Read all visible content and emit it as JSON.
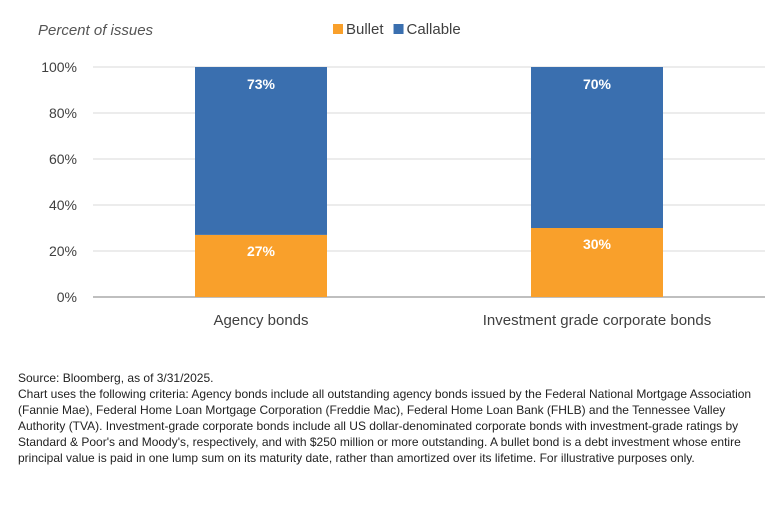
{
  "chart_data": {
    "type": "bar",
    "stacked": true,
    "ylabel": "Percent of issues",
    "ylim": [
      0,
      100
    ],
    "yticks": [
      "0%",
      "20%",
      "40%",
      "60%",
      "80%",
      "100%"
    ],
    "categories": [
      "Agency bonds",
      "Investment grade corporate bonds"
    ],
    "series": [
      {
        "name": "Bullet",
        "values": [
          27,
          30
        ],
        "labels": [
          "27%",
          "30%"
        ],
        "color": "#F9A02B"
      },
      {
        "name": "Callable",
        "values": [
          73,
          70
        ],
        "labels": [
          "73%",
          "70%"
        ],
        "color": "#3A6FAF"
      }
    ],
    "grid": true,
    "legend": "top-center"
  },
  "notes": {
    "source": "Source: Bloomberg, as of 3/31/2025.",
    "criteria": "Chart uses the following criteria: Agency bonds include all outstanding agency bonds issued by the Federal National Mortgage Association (Fannie Mae), Federal Home Loan Mortgage Corporation (Freddie Mac), Federal Home Loan Bank (FHLB) and the Tennessee Valley Authority (TVA). Investment-grade corporate bonds include all US dollar-denominated corporate bonds with investment-grade ratings by Standard & Poor's and Moody's, respectively, and with $250 million or more outstanding. A bullet bond is a debt investment whose entire principal value is paid in one lump sum on its maturity date, rather than amortized over its lifetime. For illustrative purposes only."
  }
}
